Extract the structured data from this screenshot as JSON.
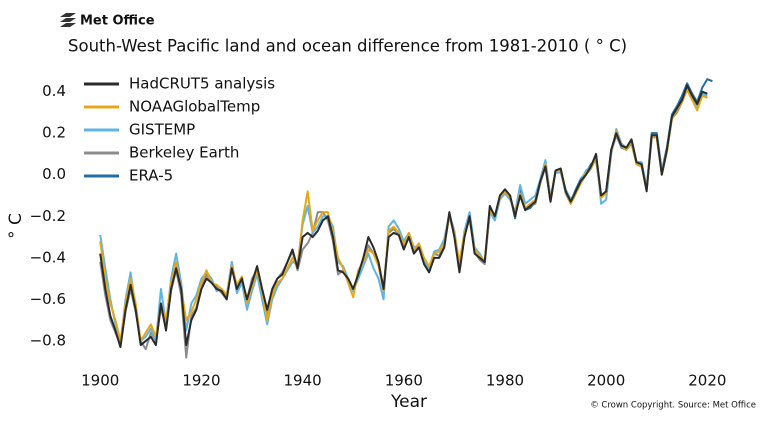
{
  "logo": "Met Office",
  "chart_data": {
    "type": "line",
    "title": "South-West Pacific land and ocean difference from 1981-2010 ( ° C)",
    "x_label": "Year",
    "y_label": "° C",
    "source": "© Crown Copyright. Source: Met Office",
    "legend": "upper left",
    "grid": false,
    "xlim": [
      1896,
      2022.5
    ],
    "ylim": [
      -0.94,
      0.48
    ],
    "xticks": [
      1900,
      1920,
      1940,
      1960,
      1980,
      2000,
      2020
    ],
    "yticks": [
      {
        "value": -0.8,
        "label": "−0.8"
      },
      {
        "value": -0.6,
        "label": "−0.6"
      },
      {
        "value": -0.4,
        "label": "−0.4"
      },
      {
        "value": -0.2,
        "label": "−0.2"
      },
      {
        "value": 0,
        "label": "0.0"
      },
      0.2,
      0.4
    ],
    "x": [
      1900,
      1901,
      1902,
      1903,
      1904,
      1905,
      1906,
      1907,
      1908,
      1909,
      1910,
      1911,
      1912,
      1913,
      1914,
      1915,
      1916,
      1917,
      1918,
      1919,
      1920,
      1921,
      1922,
      1923,
      1924,
      1925,
      1926,
      1927,
      1928,
      1929,
      1930,
      1931,
      1932,
      1933,
      1934,
      1935,
      1936,
      1937,
      1938,
      1939,
      1940,
      1941,
      1942,
      1943,
      1944,
      1945,
      1946,
      1947,
      1948,
      1949,
      1950,
      1951,
      1952,
      1953,
      1954,
      1955,
      1956,
      1957,
      1958,
      1959,
      1960,
      1961,
      1962,
      1963,
      1964,
      1965,
      1966,
      1967,
      1968,
      1969,
      1970,
      1971,
      1972,
      1973,
      1974,
      1975,
      1976,
      1977,
      1978,
      1979,
      1980,
      1981,
      1982,
      1983,
      1984,
      1985,
      1986,
      1987,
      1988,
      1989,
      1990,
      1991,
      1992,
      1993,
      1994,
      1995,
      1996,
      1997,
      1998,
      1999,
      2000,
      2001,
      2002,
      2003,
      2004,
      2005,
      2006,
      2007,
      2008,
      2009,
      2010,
      2011,
      2012,
      2013,
      2014,
      2015,
      2016,
      2017,
      2018,
      2019,
      2020,
      2021
    ],
    "series": [
      {
        "name": "HadCRUT5 analysis",
        "color": "#2b2b2b",
        "values": [
          -0.38,
          -0.55,
          -0.68,
          -0.75,
          -0.83,
          -0.65,
          -0.53,
          -0.65,
          -0.82,
          -0.8,
          -0.78,
          -0.82,
          -0.62,
          -0.75,
          -0.55,
          -0.45,
          -0.55,
          -0.82,
          -0.7,
          -0.65,
          -0.55,
          -0.5,
          -0.52,
          -0.55,
          -0.56,
          -0.6,
          -0.45,
          -0.55,
          -0.5,
          -0.6,
          -0.52,
          -0.44,
          -0.55,
          -0.65,
          -0.55,
          -0.5,
          -0.48,
          -0.42,
          -0.36,
          -0.45,
          -0.3,
          -0.28,
          -0.3,
          -0.27,
          -0.22,
          -0.2,
          -0.3,
          -0.46,
          -0.47,
          -0.5,
          -0.55,
          -0.48,
          -0.4,
          -0.3,
          -0.35,
          -0.42,
          -0.55,
          -0.3,
          -0.28,
          -0.29,
          -0.36,
          -0.3,
          -0.38,
          -0.35,
          -0.43,
          -0.47,
          -0.4,
          -0.4,
          -0.35,
          -0.18,
          -0.3,
          -0.47,
          -0.3,
          -0.2,
          -0.38,
          -0.4,
          -0.42,
          -0.15,
          -0.2,
          -0.1,
          -0.07,
          -0.1,
          -0.2,
          -0.1,
          -0.17,
          -0.15,
          -0.13,
          -0.03,
          0.04,
          -0.13,
          0.02,
          0.03,
          -0.08,
          -0.13,
          -0.08,
          -0.03,
          0.0,
          0.04,
          0.1,
          -0.1,
          -0.08,
          0.12,
          0.2,
          0.14,
          0.13,
          0.17,
          0.06,
          0.05,
          -0.08,
          0.19,
          0.19,
          0.0,
          0.12,
          0.28,
          0.32,
          0.36,
          0.43,
          0.38,
          0.34,
          0.4,
          0.39,
          null
        ]
      },
      {
        "name": "NOAAGlobalTemp",
        "color": "#e6a817",
        "values": [
          -0.32,
          -0.5,
          -0.62,
          -0.7,
          -0.8,
          -0.62,
          -0.5,
          -0.62,
          -0.8,
          -0.76,
          -0.72,
          -0.78,
          -0.63,
          -0.7,
          -0.52,
          -0.42,
          -0.55,
          -0.7,
          -0.66,
          -0.6,
          -0.52,
          -0.46,
          -0.52,
          -0.53,
          -0.55,
          -0.58,
          -0.44,
          -0.53,
          -0.49,
          -0.62,
          -0.54,
          -0.46,
          -0.56,
          -0.7,
          -0.58,
          -0.52,
          -0.5,
          -0.45,
          -0.4,
          -0.45,
          -0.22,
          -0.08,
          -0.27,
          -0.22,
          -0.18,
          -0.18,
          -0.28,
          -0.4,
          -0.45,
          -0.52,
          -0.59,
          -0.46,
          -0.42,
          -0.36,
          -0.38,
          -0.44,
          -0.56,
          -0.27,
          -0.25,
          -0.28,
          -0.34,
          -0.28,
          -0.36,
          -0.33,
          -0.4,
          -0.44,
          -0.38,
          -0.37,
          -0.33,
          -0.2,
          -0.28,
          -0.42,
          -0.28,
          -0.22,
          -0.36,
          -0.39,
          -0.42,
          -0.17,
          -0.2,
          -0.11,
          -0.08,
          -0.11,
          -0.19,
          -0.09,
          -0.16,
          -0.14,
          -0.12,
          -0.04,
          0.05,
          -0.12,
          0.02,
          0.02,
          -0.08,
          -0.14,
          -0.09,
          -0.04,
          0.01,
          0.03,
          0.09,
          -0.11,
          -0.09,
          0.11,
          0.21,
          0.14,
          0.12,
          0.16,
          0.05,
          0.04,
          -0.07,
          0.18,
          0.18,
          0.01,
          0.11,
          0.27,
          0.31,
          0.35,
          0.41,
          0.36,
          0.31,
          0.38,
          0.37,
          null
        ]
      },
      {
        "name": "GISTEMP",
        "color": "#5fb4e5",
        "values": [
          -0.29,
          -0.45,
          -0.6,
          -0.72,
          -0.82,
          -0.6,
          -0.47,
          -0.64,
          -0.8,
          -0.78,
          -0.74,
          -0.8,
          -0.55,
          -0.72,
          -0.5,
          -0.38,
          -0.52,
          -0.75,
          -0.62,
          -0.58,
          -0.5,
          -0.47,
          -0.5,
          -0.56,
          -0.55,
          -0.58,
          -0.42,
          -0.57,
          -0.52,
          -0.65,
          -0.56,
          -0.48,
          -0.6,
          -0.72,
          -0.6,
          -0.54,
          -0.5,
          -0.46,
          -0.42,
          -0.43,
          -0.24,
          -0.15,
          -0.28,
          -0.25,
          -0.2,
          -0.2,
          -0.25,
          -0.42,
          -0.44,
          -0.5,
          -0.56,
          -0.5,
          -0.44,
          -0.38,
          -0.45,
          -0.5,
          -0.6,
          -0.25,
          -0.22,
          -0.26,
          -0.32,
          -0.28,
          -0.35,
          -0.34,
          -0.42,
          -0.45,
          -0.37,
          -0.36,
          -0.31,
          -0.19,
          -0.27,
          -0.44,
          -0.27,
          -0.18,
          -0.35,
          -0.38,
          -0.42,
          -0.18,
          -0.22,
          -0.12,
          -0.09,
          -0.12,
          -0.18,
          -0.05,
          -0.14,
          -0.12,
          -0.1,
          -0.02,
          0.07,
          -0.11,
          0.01,
          0.01,
          -0.07,
          -0.12,
          -0.08,
          -0.03,
          0.02,
          0.04,
          0.1,
          -0.14,
          -0.12,
          0.1,
          0.22,
          0.15,
          0.13,
          0.17,
          0.06,
          0.06,
          -0.06,
          0.19,
          0.19,
          0.02,
          0.12,
          0.28,
          0.31,
          0.36,
          0.42,
          0.37,
          0.32,
          0.39,
          0.38,
          null
        ]
      },
      {
        "name": "Berkeley Earth",
        "color": "#8c8c8c",
        "values": [
          -0.42,
          -0.58,
          -0.7,
          -0.76,
          -0.82,
          -0.66,
          -0.55,
          -0.66,
          -0.8,
          -0.84,
          -0.76,
          -0.8,
          -0.64,
          -0.74,
          -0.56,
          -0.46,
          -0.58,
          -0.88,
          -0.68,
          -0.64,
          -0.54,
          -0.48,
          -0.52,
          -0.54,
          -0.57,
          -0.6,
          -0.42,
          -0.55,
          -0.52,
          -0.6,
          -0.5,
          -0.46,
          -0.56,
          -0.68,
          -0.57,
          -0.5,
          -0.47,
          -0.42,
          -0.37,
          -0.46,
          -0.36,
          -0.33,
          -0.28,
          -0.18,
          -0.18,
          -0.22,
          -0.32,
          -0.48,
          -0.46,
          -0.51,
          -0.56,
          -0.47,
          -0.41,
          -0.34,
          -0.38,
          -0.43,
          -0.55,
          -0.28,
          -0.26,
          -0.29,
          -0.35,
          -0.29,
          -0.37,
          -0.34,
          -0.42,
          -0.46,
          -0.38,
          -0.39,
          -0.34,
          -0.2,
          -0.29,
          -0.45,
          -0.29,
          -0.21,
          -0.37,
          -0.41,
          -0.43,
          -0.18,
          -0.21,
          -0.11,
          -0.08,
          -0.11,
          -0.19,
          -0.1,
          -0.17,
          -0.15,
          -0.14,
          -0.04,
          0.04,
          -0.13,
          0.02,
          0.02,
          -0.09,
          -0.14,
          -0.09,
          -0.04,
          0.0,
          0.03,
          0.08,
          -0.11,
          -0.09,
          0.11,
          0.19,
          0.13,
          0.12,
          0.15,
          0.05,
          0.04,
          -0.07,
          0.18,
          0.18,
          0.0,
          0.11,
          0.27,
          0.3,
          0.35,
          0.41,
          0.36,
          0.32,
          0.39,
          0.37,
          null
        ]
      },
      {
        "name": "ERA-5",
        "color": "#1f6fa8",
        "values": [
          null,
          null,
          null,
          null,
          null,
          null,
          null,
          null,
          null,
          null,
          null,
          null,
          null,
          null,
          null,
          null,
          null,
          null,
          null,
          null,
          null,
          null,
          null,
          null,
          null,
          null,
          null,
          null,
          null,
          null,
          null,
          null,
          null,
          null,
          null,
          null,
          null,
          null,
          null,
          null,
          null,
          null,
          null,
          null,
          null,
          null,
          null,
          null,
          null,
          null,
          null,
          null,
          null,
          null,
          null,
          null,
          null,
          null,
          null,
          null,
          null,
          null,
          null,
          null,
          null,
          null,
          null,
          null,
          null,
          null,
          null,
          null,
          null,
          null,
          null,
          null,
          null,
          null,
          null,
          -0.11,
          -0.08,
          -0.1,
          -0.21,
          -0.06,
          -0.17,
          -0.16,
          -0.13,
          -0.03,
          0.05,
          -0.12,
          0.02,
          0.03,
          -0.08,
          -0.13,
          -0.07,
          -0.02,
          0.01,
          0.05,
          0.07,
          -0.1,
          -0.08,
          0.12,
          0.19,
          0.14,
          0.12,
          0.17,
          0.06,
          0.06,
          -0.07,
          0.2,
          0.2,
          0.02,
          0.13,
          0.29,
          0.33,
          0.38,
          0.44,
          0.39,
          0.35,
          0.42,
          0.46,
          0.45
        ]
      }
    ]
  }
}
